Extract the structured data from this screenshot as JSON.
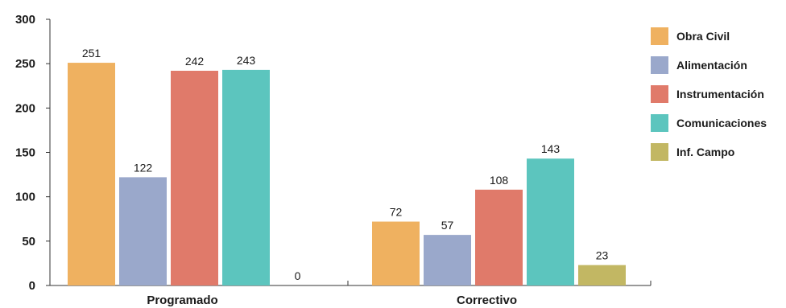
{
  "chart_data": {
    "type": "bar",
    "categories": [
      "Programado",
      "Correctivo"
    ],
    "series": [
      {
        "name": "Obra Civil",
        "values": [
          251,
          72
        ],
        "color": "#EFB160"
      },
      {
        "name": "Alimentación",
        "values": [
          122,
          57
        ],
        "color": "#9AA8CB"
      },
      {
        "name": "Instrumentación",
        "values": [
          242,
          108
        ],
        "color": "#E07A6A"
      },
      {
        "name": "Comunicaciones",
        "values": [
          243,
          143
        ],
        "color": "#5CC5BE"
      },
      {
        "name": "Inf. Campo",
        "values": [
          0,
          23
        ],
        "color": "#C2B763"
      }
    ],
    "yticks": [
      0,
      50,
      100,
      150,
      200,
      250,
      300
    ],
    "ylim": [
      0,
      300
    ],
    "title": "",
    "xlabel": "",
    "ylabel": "",
    "legend": "right",
    "grid": false
  }
}
